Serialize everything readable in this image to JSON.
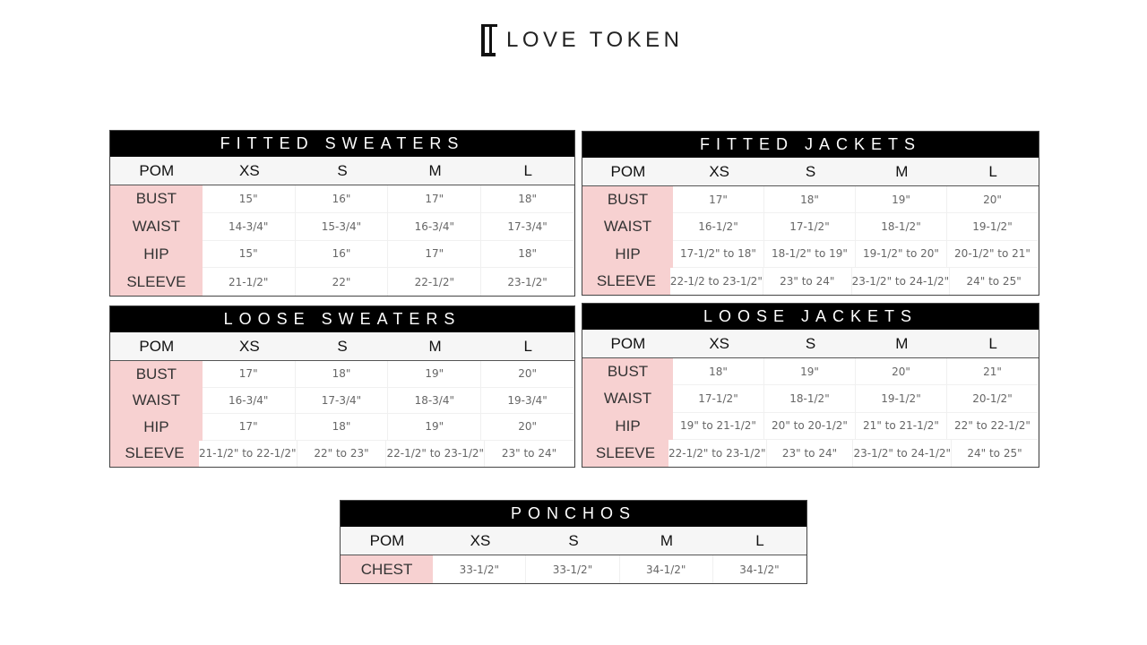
{
  "brand": {
    "name": "LOVE TOKEN"
  },
  "colors": {
    "title_bar": "#000000",
    "pom_cell": "#f7d1d1",
    "header_bg": "#f6f6f6"
  },
  "charts": [
    {
      "title": "FITTED SWEATERS",
      "columns": [
        "POM",
        "XS",
        "S",
        "M",
        "L"
      ],
      "rows": [
        [
          "BUST",
          "15\"",
          "16\"",
          "17\"",
          "18\""
        ],
        [
          "WAIST",
          "14-3/4\"",
          "15-3/4\"",
          "16-3/4\"",
          "17-3/4\""
        ],
        [
          "HIP",
          "15\"",
          "16\"",
          "17\"",
          "18\""
        ],
        [
          "SLEEVE",
          "21-1/2\"",
          "22\"",
          "22-1/2\"",
          "23-1/2\""
        ]
      ]
    },
    {
      "title": "FITTED JACKETS",
      "columns": [
        "POM",
        "XS",
        "S",
        "M",
        "L"
      ],
      "rows": [
        [
          "BUST",
          "17\"",
          "18\"",
          "19\"",
          "20\""
        ],
        [
          "WAIST",
          "16-1/2\"",
          "17-1/2\"",
          "18-1/2\"",
          "19-1/2\""
        ],
        [
          "HIP",
          "17-1/2\" to 18\"",
          "18-1/2\" to 19\"",
          "19-1/2\" to 20\"",
          "20-1/2\" to 21\""
        ],
        [
          "SLEEVE",
          "22-1/2 to 23-1/2\"",
          "23\" to 24\"",
          "23-1/2\" to 24-1/2\"",
          "24\" to 25\""
        ]
      ]
    },
    {
      "title": "LOOSE SWEATERS",
      "columns": [
        "POM",
        "XS",
        "S",
        "M",
        "L"
      ],
      "rows": [
        [
          "BUST",
          "17\"",
          "18\"",
          "19\"",
          "20\""
        ],
        [
          "WAIST",
          "16-3/4\"",
          "17-3/4\"",
          "18-3/4\"",
          "19-3/4\""
        ],
        [
          "HIP",
          "17\"",
          "18\"",
          "19\"",
          "20\""
        ],
        [
          "SLEEVE",
          "21-1/2\" to 22-1/2\"",
          "22\" to 23\"",
          "22-1/2\" to 23-1/2\"",
          "23\" to 24\""
        ]
      ]
    },
    {
      "title": "LOOSE JACKETS",
      "columns": [
        "POM",
        "XS",
        "S",
        "M",
        "L"
      ],
      "rows": [
        [
          "BUST",
          "18\"",
          "19\"",
          "20\"",
          "21\""
        ],
        [
          "WAIST",
          "17-1/2\"",
          "18-1/2\"",
          "19-1/2\"",
          "20-1/2\""
        ],
        [
          "HIP",
          "19\" to 21-1/2\"",
          "20\" to 20-1/2\"",
          "21\" to 21-1/2\"",
          "22\" to 22-1/2\""
        ],
        [
          "SLEEVE",
          "22-1/2\" to 23-1/2\"",
          "23\" to 24\"",
          "23-1/2\" to 24-1/2\"",
          "24\" to 25\""
        ]
      ]
    },
    {
      "title": "PONCHOS",
      "columns": [
        "POM",
        "XS",
        "S",
        "M",
        "L"
      ],
      "rows": [
        [
          "CHEST",
          "33-1/2\"",
          "33-1/2\"",
          "34-1/2\"",
          "34-1/2\""
        ]
      ]
    }
  ]
}
